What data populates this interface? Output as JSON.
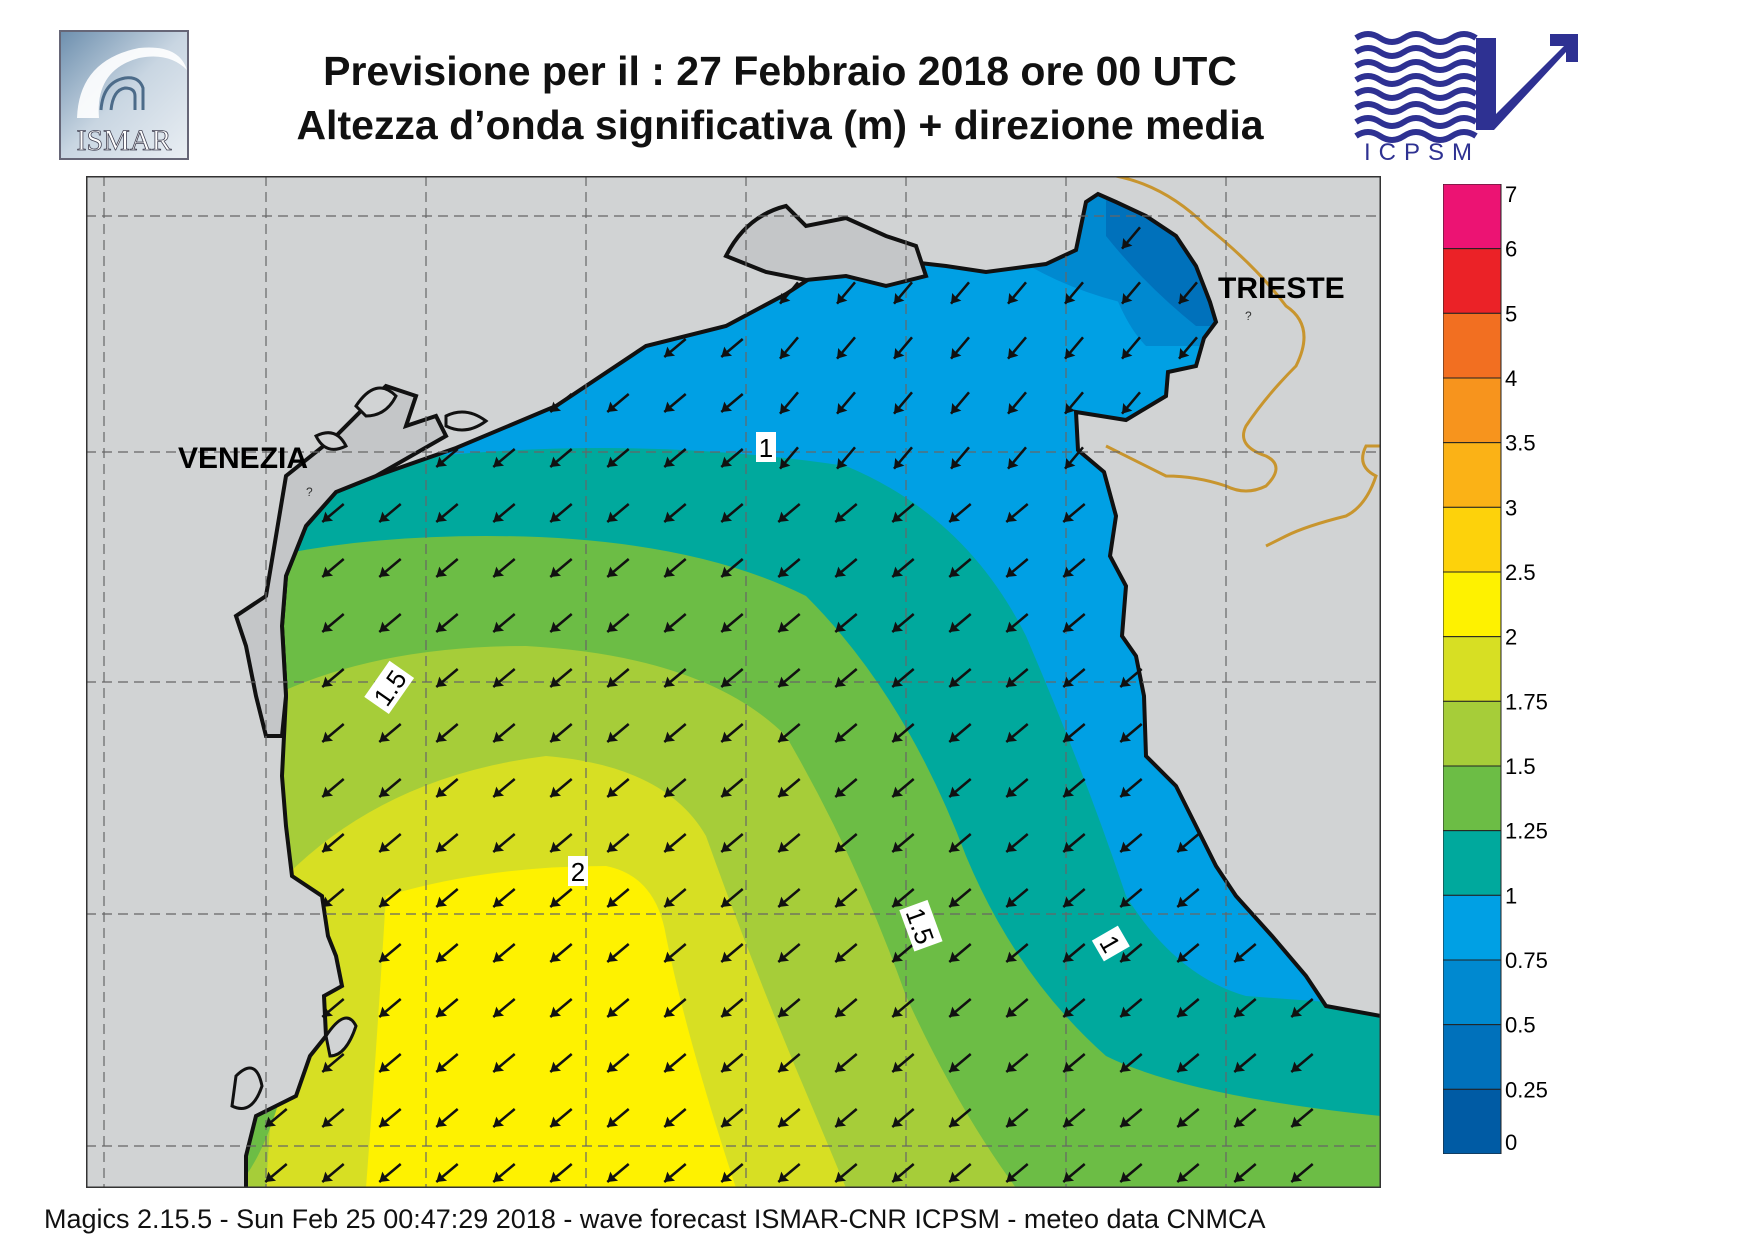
{
  "title": {
    "line1": "Previsione per il  :  27  Febbraio 2018   ore 00 UTC",
    "line2": "Altezza d’onda significativa (m) + direzione media"
  },
  "logos": {
    "left": "ISMAR",
    "right": "ICPSM"
  },
  "map": {
    "places": [
      "VENEZIA",
      "TRIESTE"
    ],
    "contour_labels": [
      "1",
      "1.5",
      "2",
      "1.5",
      "1"
    ],
    "mean_wave_direction": "towards south-west"
  },
  "colorbar": {
    "ticks": [
      "7",
      "6",
      "5",
      "4",
      "3.5",
      "3",
      "2.5",
      "2",
      "1.75",
      "1.5",
      "1.25",
      "1",
      "0.75",
      "0.5",
      "0.25",
      "0"
    ],
    "colors": [
      "#ec1373",
      "#eb2227",
      "#f26f21",
      "#f7941d",
      "#fbb216",
      "#fdd20b",
      "#fef200",
      "#d7df23",
      "#a6cd39",
      "#6cbd45",
      "#00a99d",
      "#00a0e4",
      "#0089d0",
      "#0071bb",
      "#005ba4"
    ]
  },
  "footer": "Magics 2.15.5 - Sun Feb 25 00:47:29 2018 - wave forecast  ISMAR-CNR  ICPSM - meteo data   CNMCA"
}
